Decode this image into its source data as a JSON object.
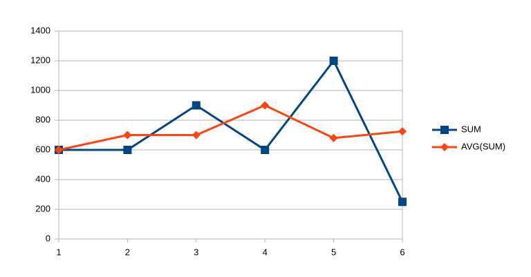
{
  "chart_data": {
    "type": "line",
    "x": [
      1,
      2,
      3,
      4,
      5,
      6
    ],
    "xlim": [
      1,
      6
    ],
    "xticks": [
      1,
      2,
      3,
      4,
      5,
      6
    ],
    "ylim": [
      0,
      1400
    ],
    "yticks": [
      0,
      200,
      400,
      600,
      800,
      1000,
      1200,
      1400
    ],
    "grid": true,
    "legend": "right",
    "series": [
      {
        "name": "SUM",
        "color": "#004586",
        "marker": "square",
        "values": [
          600,
          600,
          900,
          600,
          1200,
          250
        ]
      },
      {
        "name": "AVG(SUM)",
        "color": "#ff420e",
        "marker": "diamond",
        "values": [
          600,
          700,
          700,
          900,
          680,
          725
        ]
      }
    ]
  }
}
